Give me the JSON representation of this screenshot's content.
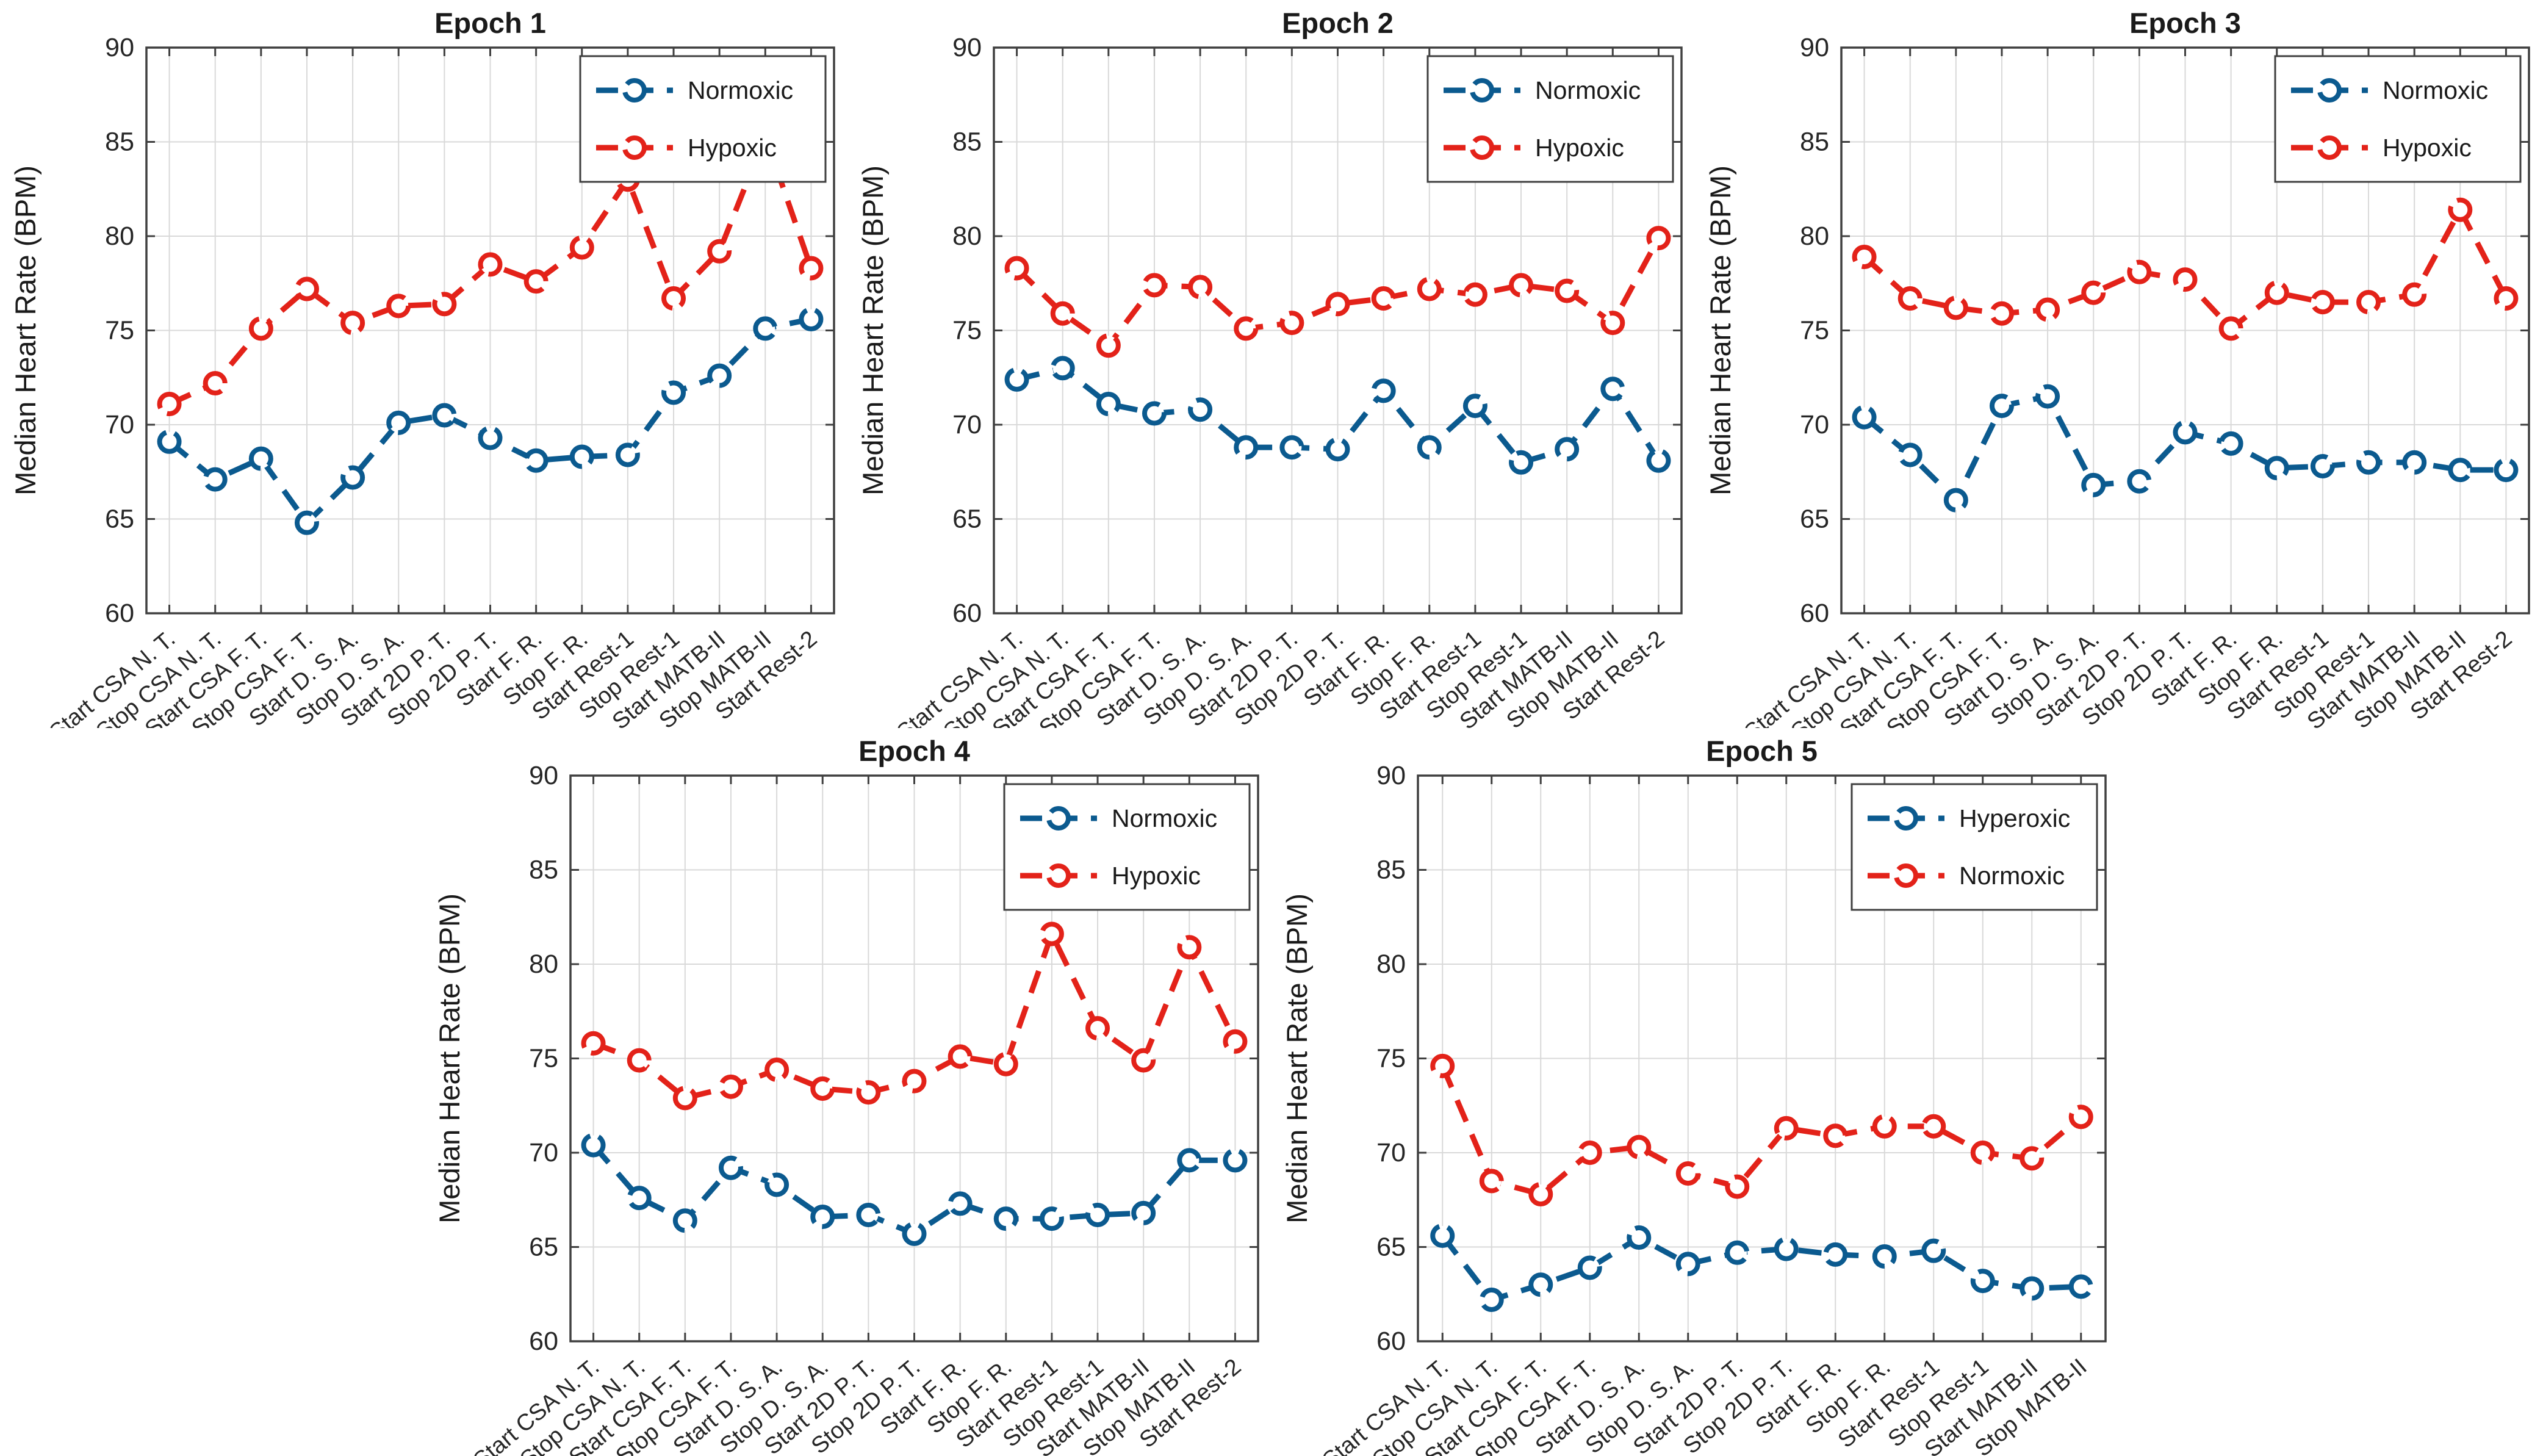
{
  "figure": {
    "background": "#ffffff",
    "ylabel": "Median Heart Rate (BPM)"
  },
  "colors": {
    "blue_series": "#0b5a8f",
    "red_series": "#e32219",
    "grid": "#d9d9d9",
    "axis": "#3f3f3f",
    "text": "#1a1a1a",
    "tick_text": "#262626",
    "legend_border": "#3f3f3f",
    "legend_bg": "#ffffff"
  },
  "chart_data": [
    {
      "type": "line",
      "title": "Epoch 1",
      "ylabel": "Median Heart Rate (BPM)",
      "ylim": [
        60,
        90
      ],
      "yticks": [
        60,
        65,
        70,
        75,
        80,
        85,
        90
      ],
      "grid": true,
      "legend_position": "top-right",
      "line_style": "dashed",
      "marker": "open-circle",
      "categories": [
        "Start CSA N. T.",
        "Stop CSA N. T.",
        "Start CSA F. T.",
        "Stop CSA F. T.",
        "Start D. S. A.",
        "Stop D. S. A.",
        "Start 2D P. T.",
        "Stop 2D P. T.",
        "Start F. R.",
        "Stop F. R.",
        "Start Rest-1",
        "Stop Rest-1",
        "Start MATB-II",
        "Stop MATB-II",
        "Start Rest-2"
      ],
      "series": [
        {
          "name": "Normoxic",
          "color": "#0b5a8f",
          "values": [
            69.1,
            67.1,
            68.2,
            64.8,
            67.2,
            70.1,
            70.5,
            69.3,
            68.1,
            68.3,
            68.4,
            71.7,
            72.6,
            75.1,
            75.6
          ]
        },
        {
          "name": "Hypoxic",
          "color": "#e32219",
          "values": [
            71.1,
            72.2,
            75.1,
            77.2,
            75.4,
            76.3,
            76.4,
            78.5,
            77.6,
            79.4,
            83.0,
            76.7,
            79.2,
            85.3,
            78.3
          ]
        }
      ]
    },
    {
      "type": "line",
      "title": "Epoch 2",
      "ylabel": "Median Heart Rate (BPM)",
      "ylim": [
        60,
        90
      ],
      "yticks": [
        60,
        65,
        70,
        75,
        80,
        85,
        90
      ],
      "grid": true,
      "legend_position": "top-right",
      "line_style": "dashed",
      "marker": "open-circle",
      "categories": [
        "Start CSA N. T.",
        "Stop CSA N. T.",
        "Start CSA F. T.",
        "Stop CSA F. T.",
        "Start D. S. A.",
        "Stop D. S. A.",
        "Start 2D P. T.",
        "Stop 2D P. T.",
        "Start F. R.",
        "Stop F. R.",
        "Start Rest-1",
        "Stop Rest-1",
        "Start MATB-II",
        "Stop MATB-II",
        "Start Rest-2"
      ],
      "series": [
        {
          "name": "Normoxic",
          "color": "#0b5a8f",
          "values": [
            72.4,
            73.0,
            71.1,
            70.6,
            70.8,
            68.8,
            68.8,
            68.7,
            71.8,
            68.8,
            71.0,
            68.0,
            68.7,
            71.9,
            68.1
          ]
        },
        {
          "name": "Hypoxic",
          "color": "#e32219",
          "values": [
            78.3,
            75.9,
            74.2,
            77.4,
            77.3,
            75.1,
            75.4,
            76.4,
            76.7,
            77.2,
            76.9,
            77.4,
            77.1,
            75.4,
            79.9
          ]
        }
      ]
    },
    {
      "type": "line",
      "title": "Epoch 3",
      "ylabel": "Median Heart Rate (BPM)",
      "ylim": [
        60,
        90
      ],
      "yticks": [
        60,
        65,
        70,
        75,
        80,
        85,
        90
      ],
      "grid": true,
      "legend_position": "top-right",
      "line_style": "dashed",
      "marker": "open-circle",
      "categories": [
        "Start CSA N. T.",
        "Stop CSA N. T.",
        "Start CSA F. T.",
        "Stop CSA F. T.",
        "Start D. S. A.",
        "Stop D. S. A.",
        "Start 2D P. T.",
        "Stop 2D P. T.",
        "Start F. R.",
        "Stop F. R.",
        "Start Rest-1",
        "Stop Rest-1",
        "Start MATB-II",
        "Stop MATB-II",
        "Start Rest-2"
      ],
      "series": [
        {
          "name": "Normoxic",
          "color": "#0b5a8f",
          "values": [
            70.4,
            68.4,
            66.0,
            71.0,
            71.5,
            66.8,
            67.0,
            69.6,
            69.0,
            67.7,
            67.8,
            68.0,
            68.0,
            67.6,
            67.6
          ]
        },
        {
          "name": "Hypoxic",
          "color": "#e32219",
          "values": [
            78.9,
            76.7,
            76.2,
            75.9,
            76.1,
            77.0,
            78.1,
            77.7,
            75.1,
            77.0,
            76.5,
            76.5,
            76.9,
            81.4,
            76.7
          ]
        }
      ]
    },
    {
      "type": "line",
      "title": "Epoch 4",
      "ylabel": "Median Heart Rate (BPM)",
      "ylim": [
        60,
        90
      ],
      "yticks": [
        60,
        65,
        70,
        75,
        80,
        85,
        90
      ],
      "grid": true,
      "legend_position": "top-right",
      "line_style": "dashed",
      "marker": "open-circle",
      "categories": [
        "Start CSA N. T.",
        "Stop CSA N. T.",
        "Start CSA F. T.",
        "Stop CSA F. T.",
        "Start D. S. A.",
        "Stop D. S. A.",
        "Start 2D P. T.",
        "Stop 2D P. T.",
        "Start F. R.",
        "Stop F. R.",
        "Start Rest-1",
        "Stop Rest-1",
        "Start MATB-II",
        "Stop MATB-II",
        "Start Rest-2"
      ],
      "series": [
        {
          "name": "Normoxic",
          "color": "#0b5a8f",
          "values": [
            70.4,
            67.6,
            66.4,
            69.2,
            68.3,
            66.6,
            66.7,
            65.7,
            67.3,
            66.5,
            66.5,
            66.7,
            66.8,
            69.6,
            69.6
          ]
        },
        {
          "name": "Hypoxic",
          "color": "#e32219",
          "values": [
            75.8,
            74.9,
            72.9,
            73.5,
            74.4,
            73.4,
            73.2,
            73.8,
            75.1,
            74.7,
            81.6,
            76.6,
            74.9,
            80.9,
            75.9
          ]
        }
      ]
    },
    {
      "type": "line",
      "title": "Epoch 5",
      "ylabel": "Median Heart Rate (BPM)",
      "ylim": [
        60,
        90
      ],
      "yticks": [
        60,
        65,
        70,
        75,
        80,
        85,
        90
      ],
      "grid": true,
      "legend_position": "top-right",
      "line_style": "dashed",
      "marker": "open-circle",
      "categories": [
        "Start CSA N. T.",
        "Stop CSA N. T.",
        "Start CSA F. T.",
        "Stop CSA F. T.",
        "Start D. S. A.",
        "Stop D. S. A.",
        "Start 2D P. T.",
        "Stop 2D P. T.",
        "Start F. R.",
        "Stop F. R.",
        "Start Rest-1",
        "Stop Rest-1",
        "Start MATB-II",
        "Stop MATB-II"
      ],
      "series": [
        {
          "name": "Hyperoxic",
          "color": "#0b5a8f",
          "values": [
            65.6,
            62.2,
            63.0,
            63.9,
            65.5,
            64.1,
            64.7,
            64.9,
            64.6,
            64.5,
            64.8,
            63.2,
            62.8,
            62.9
          ]
        },
        {
          "name": "Normoxic",
          "color": "#e32219",
          "values": [
            74.6,
            68.5,
            67.8,
            70.0,
            70.3,
            68.9,
            68.2,
            71.3,
            70.9,
            71.4,
            71.4,
            70.0,
            69.7,
            71.9
          ]
        }
      ]
    }
  ]
}
